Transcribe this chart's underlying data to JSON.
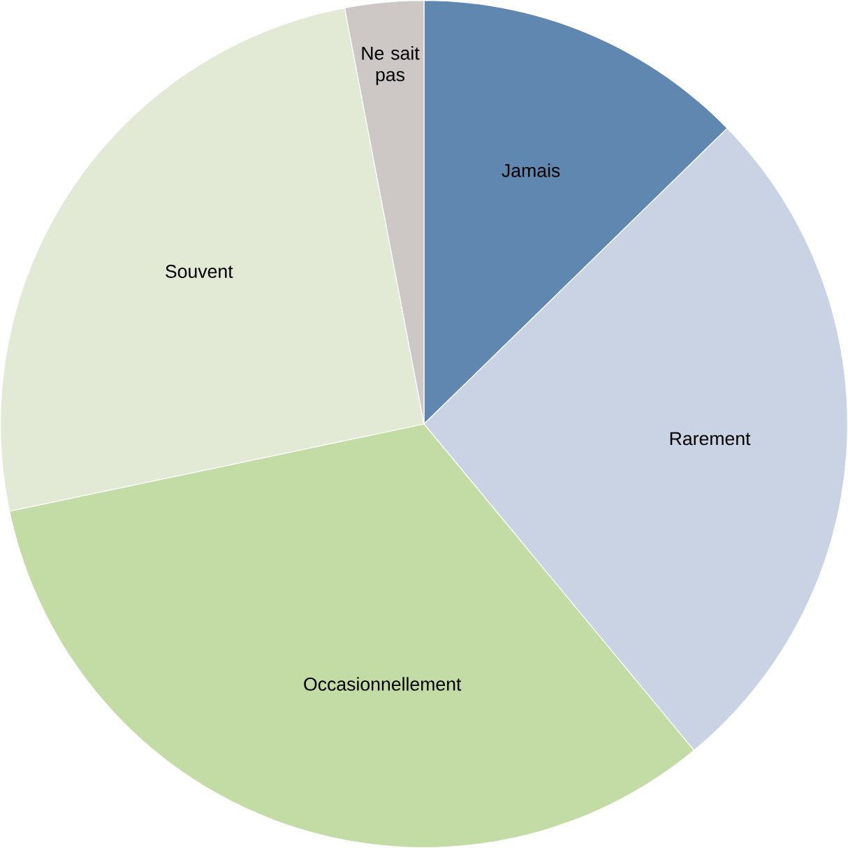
{
  "chart_data": {
    "type": "pie",
    "categories": [
      "Jamais",
      "Rarement",
      "Occasionnellement",
      "Souvent",
      "Ne sait pas"
    ],
    "values": [
      12.7,
      26.3,
      32.7,
      25.3,
      3.0
    ],
    "colors": [
      "#6087b0",
      "#c9d3e4",
      "#c3dba5",
      "#e2ead5",
      "#cdc7c5"
    ]
  }
}
